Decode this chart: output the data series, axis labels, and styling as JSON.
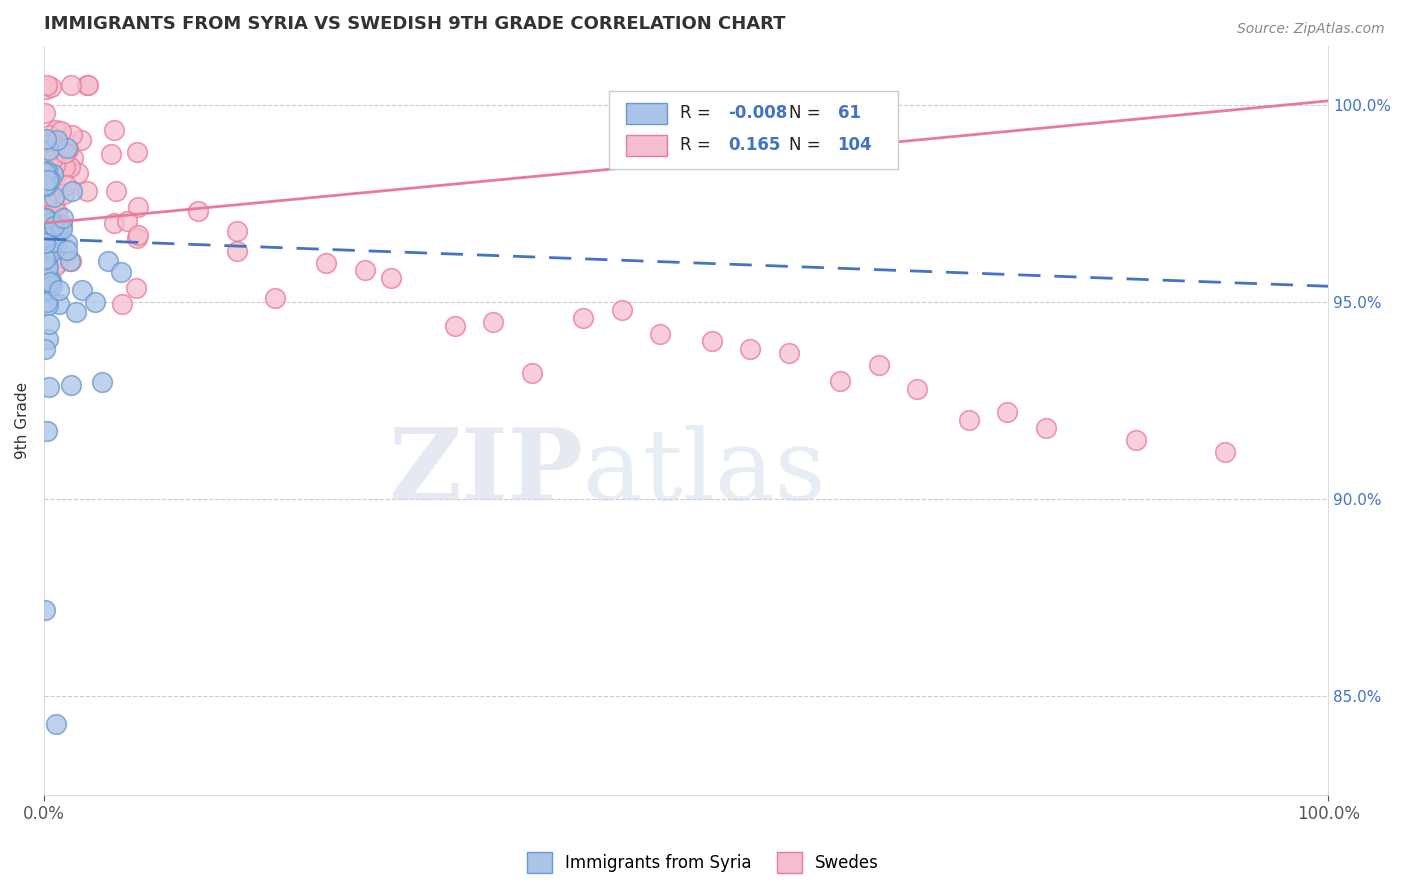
{
  "title": "IMMIGRANTS FROM SYRIA VS SWEDISH 9TH GRADE CORRELATION CHART",
  "source_text": "Source: ZipAtlas.com",
  "ylabel": "9th Grade",
  "right_yticks": [
    85.0,
    90.0,
    95.0,
    100.0
  ],
  "r_blue": -0.008,
  "n_blue": 61,
  "r_pink": 0.165,
  "n_pink": 104,
  "blue_color": "#aac4e8",
  "blue_edge_color": "#6699cc",
  "pink_color": "#f5bece",
  "pink_edge_color": "#e87a9a",
  "blue_line_color": "#4472c4",
  "pink_line_color": "#e87a9a",
  "legend_blue_label": "Immigrants from Syria",
  "legend_pink_label": "Swedes",
  "watermark_zip": "ZIP",
  "watermark_atlas": "atlas",
  "ylim_low": 0.825,
  "ylim_high": 1.015,
  "xlim_low": 0.0,
  "xlim_high": 1.0
}
